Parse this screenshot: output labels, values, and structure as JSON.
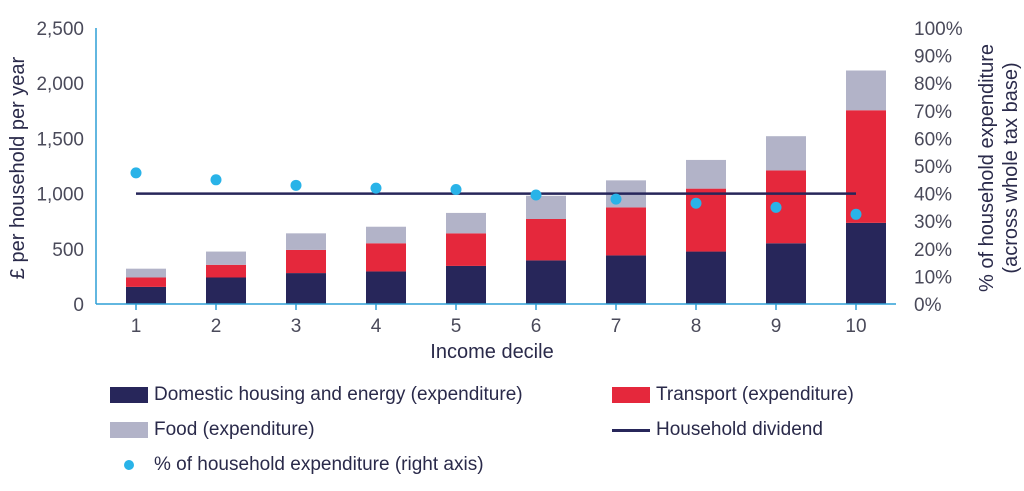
{
  "chart_data": {
    "type": "bar",
    "stacked": true,
    "categories": [
      "1",
      "2",
      "3",
      "4",
      "5",
      "6",
      "7",
      "8",
      "9",
      "10"
    ],
    "xlabel": "Income decile",
    "ylabel": "£ per household per year",
    "ylabel_right": [
      "% of household expenditure",
      "(across whole tax base)"
    ],
    "ylim": [
      0,
      2500
    ],
    "yticks": [
      "0",
      "500",
      "1,000",
      "1,500",
      "2,000",
      "2,500"
    ],
    "ylim_right": [
      0,
      100
    ],
    "yticks_right": [
      "0%",
      "10%",
      "20%",
      "30%",
      "40%",
      "50%",
      "60%",
      "70%",
      "80%",
      "90%",
      "100%"
    ],
    "series": [
      {
        "name": "Domestic housing and energy (expenditure)",
        "color": "#27265a",
        "values": [
          155,
          240,
          280,
          295,
          345,
          395,
          440,
          475,
          550,
          735
        ]
      },
      {
        "name": "Transport (expenditure)",
        "color": "#e5283c",
        "values": [
          85,
          115,
          210,
          255,
          295,
          375,
          435,
          570,
          660,
          1020
        ]
      },
      {
        "name": "Food (expenditure)",
        "color": "#b2b3c8",
        "values": [
          80,
          120,
          150,
          150,
          185,
          210,
          245,
          260,
          310,
          360
        ]
      }
    ],
    "line": {
      "name": "Household dividend",
      "color": "#27265a",
      "value": 1000
    },
    "scatter": {
      "name": "% of household expenditure (right axis)",
      "color": "#29b3e8",
      "axis": "right",
      "values": [
        47.5,
        45.0,
        43.0,
        42.0,
        41.5,
        39.5,
        38.0,
        36.5,
        35.0,
        32.5
      ]
    },
    "legend_position": "bottom"
  }
}
